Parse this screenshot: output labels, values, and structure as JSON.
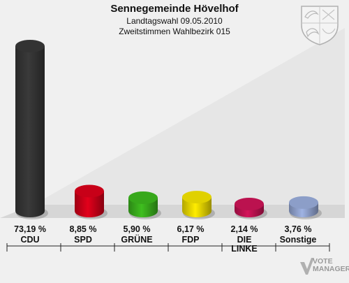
{
  "header": {
    "title": "Sennegemeinde Hövelhof",
    "subtitle": "Landtagswahl 09.05.2010",
    "subtitle2": "Zweitstimmen Wahlbezirk 015"
  },
  "logo": {
    "line1": "VOTE",
    "line2": "MANAGER"
  },
  "chart_data": {
    "type": "bar",
    "categories": [
      "CDU",
      "SPD",
      "GRÜNE",
      "FDP",
      "DIE LINKE",
      "Sonstige"
    ],
    "values": [
      73.19,
      8.85,
      5.9,
      6.17,
      2.14,
      3.76
    ],
    "value_labels": [
      "73,19 %",
      "8,85 %",
      "5,90 %",
      "6,17 %",
      "2,14 %",
      "3,76 %"
    ],
    "colors": [
      "#3a3a3a",
      "#e3001b",
      "#3fbf1f",
      "#ffed00",
      "#d4145a",
      "#9fb3e3"
    ],
    "title": "Sennegemeinde Hövelhof",
    "xlabel": "",
    "ylabel": "",
    "ylim": [
      0,
      80
    ],
    "grid": false,
    "legend": "none"
  }
}
